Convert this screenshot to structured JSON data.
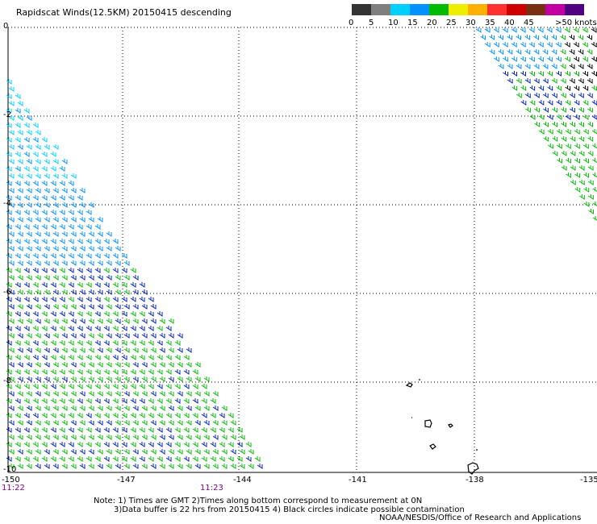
{
  "title": "Rapidscat Winds(12.5KM) 20150415 descending",
  "legend": {
    "unit": ">50 knots",
    "labels": [
      "0",
      "5",
      "10",
      "15",
      "20",
      "25",
      "30",
      "35",
      "40",
      "45"
    ],
    "colors": [
      "#333333",
      "#7f7f7f",
      "#00d0ff",
      "#0090ff",
      "#0020c0",
      "#00bb00",
      "#eeee00",
      "#ffb000",
      "#ff3030",
      "#d00000",
      "#7a3010",
      "#c000a0",
      "#9000e0",
      "#500080"
    ]
  },
  "axes": {
    "lat_ticks": [
      "0",
      "-2",
      "-4",
      "-6",
      "-8",
      "-10"
    ],
    "lon_ticks": [
      "-150",
      "-147",
      "-144",
      "-141",
      "-138",
      "-135"
    ]
  },
  "times": {
    "left": "11:22",
    "mid": "11:23"
  },
  "notes": {
    "line1": "Note: 1) Times are GMT 2)Times along bottom correspond to measurement at 0N",
    "line2": "3)Data buffer is 22 hrs from 20150415 4) Black circles indicate possible contamination",
    "credit": "NOAA/NESDIS/Office of Research and Applications"
  }
}
